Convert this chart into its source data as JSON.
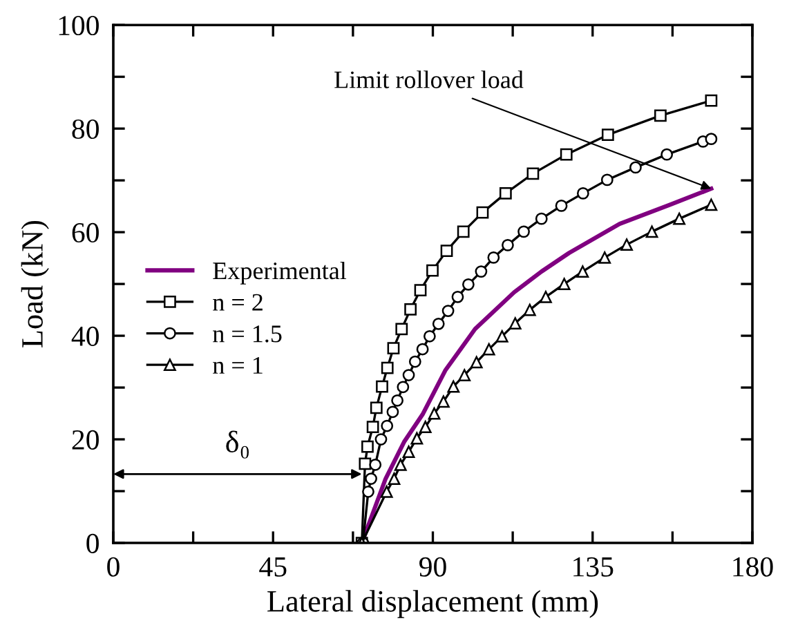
{
  "chart_data": {
    "type": "line",
    "xlabel": "Lateral displacement (mm)",
    "ylabel": "Load (kN)",
    "xlim": [
      0,
      180
    ],
    "ylim": [
      0,
      100
    ],
    "xticks": [
      0,
      {
        "value": 22.5,
        "label": null
      },
      45,
      {
        "value": 67.5,
        "label": null
      },
      90,
      {
        "value": 112.5,
        "label": null
      },
      135,
      {
        "value": 157.5,
        "label": null
      },
      180
    ],
    "yticks": [
      0,
      {
        "value": 10,
        "label": null
      },
      20,
      {
        "value": 30,
        "label": null
      },
      40,
      {
        "value": 50,
        "label": null
      },
      60,
      {
        "value": 70,
        "label": null
      },
      80,
      {
        "value": 90,
        "label": null
      },
      100
    ],
    "grid": false,
    "legend": "left",
    "series": [
      {
        "name": "Experimental",
        "color": "#800080",
        "marker": "none",
        "x": [
          70,
          76.7,
          81.9,
          87.1,
          93.5,
          101.9,
          112.9,
          120.6,
          128.4,
          142.6,
          156.8,
          168.4
        ],
        "values": [
          0,
          12.4,
          19.5,
          24.8,
          33.3,
          41.3,
          48.4,
          52.4,
          56,
          61.6,
          65.3,
          68.4
        ]
      },
      {
        "name": "n = 2",
        "color": "#000000",
        "marker": "square",
        "x": [
          70,
          70.9,
          71.6,
          73.1,
          74.1,
          75.7,
          77.2,
          78.9,
          81.2,
          83.7,
          86.5,
          89.9,
          93.9,
          98.6,
          104,
          110.5,
          118.2,
          127.6,
          139.3,
          154.1,
          168.4
        ],
        "values": [
          0,
          15.3,
          18.6,
          22.4,
          26.1,
          30.2,
          33.8,
          37.6,
          41.3,
          45.1,
          48.8,
          52.6,
          56.4,
          60.1,
          63.8,
          67.5,
          71.3,
          75,
          78.8,
          82.5,
          85.4
        ]
      },
      {
        "name": "n = 1.5",
        "color": "#000000",
        "marker": "circle",
        "x": [
          70.3,
          71.8,
          72.6,
          73.8,
          75.4,
          77.1,
          78.7,
          80,
          81.6,
          83.2,
          85,
          87.1,
          89.1,
          91.6,
          94.3,
          97,
          100,
          103.6,
          107.1,
          111.1,
          115.6,
          120.6,
          126.2,
          132.3,
          139.1,
          147.1,
          155.9,
          166.1,
          168.4
        ],
        "values": [
          0,
          9.9,
          12.4,
          15.1,
          20,
          22.6,
          25.3,
          27.5,
          30.1,
          32.4,
          35,
          37.4,
          39.9,
          42.3,
          44.8,
          47.5,
          49.9,
          52.4,
          55.1,
          57.5,
          60.1,
          62.6,
          65.1,
          67.5,
          70.1,
          72.5,
          75,
          77.5,
          78
        ]
      },
      {
        "name": "n = 1",
        "color": "#000000",
        "marker": "triangle",
        "x": [
          70,
          77,
          79.1,
          80.9,
          83.2,
          85.5,
          87.9,
          90.4,
          93,
          95.8,
          98.9,
          102.3,
          105.8,
          109.5,
          113.2,
          117.3,
          121.8,
          127,
          132.2,
          138.4,
          144.6,
          151.7,
          159.4,
          168.4
        ],
        "values": [
          0,
          9.9,
          12.4,
          15.1,
          17.6,
          20.2,
          22.4,
          25,
          27.3,
          30.2,
          32.4,
          34.9,
          37.4,
          39.9,
          42.4,
          45,
          47.5,
          50,
          52.4,
          55.1,
          57.6,
          60.1,
          62.6,
          65.3
        ]
      }
    ],
    "annotations": [
      "δ₀",
      {
        "text": "Limit rollover load",
        "x": 168.4,
        "y": 68.4
      }
    ]
  }
}
